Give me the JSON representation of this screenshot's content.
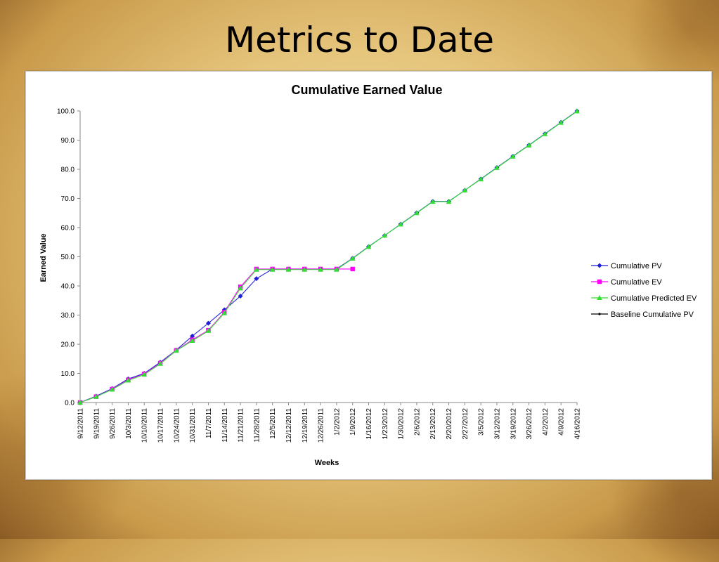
{
  "slide": {
    "title": "Metrics to Date"
  },
  "colors": {
    "pv": "#1f1fd6",
    "ev": "#ff00ff",
    "predicted": "#33dd33",
    "baseline": "#000000"
  },
  "chart_data": {
    "type": "line",
    "title": "Cumulative Earned Value",
    "xlabel": "Weeks",
    "ylabel": "Earned Value",
    "ylim": [
      0,
      100
    ],
    "yticks": [
      "0.0",
      "10.0",
      "20.0",
      "30.0",
      "40.0",
      "50.0",
      "60.0",
      "70.0",
      "80.0",
      "90.0",
      "100.0"
    ],
    "grid": false,
    "legend_position": "right",
    "categories": [
      "9/12/2011",
      "9/19/2011",
      "9/26/2011",
      "10/3/2011",
      "10/10/2011",
      "10/17/2011",
      "10/24/2011",
      "10/31/2011",
      "11/7/2011",
      "11/14/2011",
      "11/21/2011",
      "11/28/2011",
      "12/5/2011",
      "12/12/2011",
      "12/19/2011",
      "12/26/2011",
      "1/2/2012",
      "1/9/2012",
      "1/16/2012",
      "1/23/2012",
      "1/30/2012",
      "2/6/2012",
      "2/13/2012",
      "2/20/2012",
      "2/27/2012",
      "3/5/2012",
      "3/12/2012",
      "3/19/2012",
      "3/26/2012",
      "4/2/2012",
      "4/9/2012",
      "4/16/2012"
    ],
    "series": [
      {
        "name": "Cumulative PV",
        "marker": "diamond",
        "values": [
          0.0,
          2.2,
          4.8,
          8.1,
          10.0,
          13.8,
          18.0,
          22.8,
          27.2,
          31.8,
          36.5,
          42.5,
          45.8,
          45.8,
          45.8,
          45.8,
          45.8,
          49.5,
          53.5,
          57.3,
          61.2,
          65.1,
          69.0,
          69.0,
          72.8,
          76.7,
          80.6,
          84.5,
          88.3,
          92.2,
          96.1,
          100.0
        ]
      },
      {
        "name": "Cumulative EV",
        "marker": "square",
        "values": [
          0.0,
          2.0,
          4.6,
          7.8,
          9.8,
          13.5,
          17.9,
          21.5,
          24.8,
          31.0,
          39.7,
          45.8,
          45.8,
          45.8,
          45.8,
          45.8,
          45.8,
          45.8,
          null,
          null,
          null,
          null,
          null,
          null,
          null,
          null,
          null,
          null,
          null,
          null,
          null,
          null
        ]
      },
      {
        "name": "Cumulative Predicted EV",
        "marker": "triangle",
        "values": [
          0.0,
          2.0,
          4.5,
          7.6,
          9.6,
          13.3,
          17.8,
          21.2,
          24.6,
          30.7,
          39.2,
          45.6,
          45.6,
          45.6,
          45.6,
          45.6,
          45.6,
          49.4,
          53.4,
          57.3,
          61.1,
          65.0,
          68.9,
          68.9,
          72.8,
          76.6,
          80.5,
          84.4,
          88.2,
          92.1,
          96.0,
          99.9
        ]
      },
      {
        "name": "Baseline Cumulative PV",
        "marker": "dot",
        "values": [
          0.0,
          2.2,
          4.8,
          8.1,
          10.0,
          13.8,
          18.0,
          22.8,
          27.2,
          31.8,
          36.5,
          42.5,
          45.8,
          45.8,
          45.8,
          45.8,
          45.8,
          49.5,
          53.5,
          57.3,
          61.2,
          65.1,
          69.0,
          69.0,
          72.8,
          76.7,
          80.6,
          84.5,
          88.3,
          92.2,
          96.1,
          100.0
        ]
      }
    ]
  }
}
